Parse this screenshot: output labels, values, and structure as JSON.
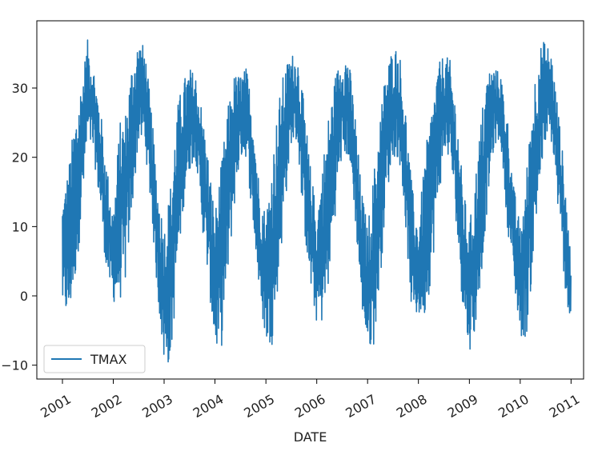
{
  "chart_data": {
    "type": "line",
    "title": "",
    "xlabel": "DATE",
    "ylabel": "",
    "ylim": [
      -12,
      39.7
    ],
    "xlim": [
      "2000-07-01",
      "2011-04-01"
    ],
    "x_ticks": [
      "2001-01-01",
      "2002-01-01",
      "2003-01-01",
      "2004-01-01",
      "2005-01-01",
      "2006-01-01",
      "2007-01-01",
      "2008-01-01",
      "2009-01-01",
      "2010-01-01",
      "2011-01-01"
    ],
    "x_tick_labels": [
      "2001",
      "2002",
      "2003",
      "2004",
      "2005",
      "2006",
      "2007",
      "2008",
      "2009",
      "2010",
      "2011"
    ],
    "y_ticks": [
      -10,
      0,
      10,
      20,
      30
    ],
    "y_tick_labels": [
      "−10",
      "0",
      "10",
      "20",
      "30"
    ],
    "grid": false,
    "legend": {
      "position": "lower-left",
      "entries": [
        "TMAX"
      ]
    },
    "colors": {
      "TMAX": "#1f77b4"
    },
    "series": [
      {
        "name": "TMAX",
        "x": [
          "2001-01-01",
          "2001-02-15",
          "2001-04-01",
          "2001-05-15",
          "2001-07-01",
          "2001-08-15",
          "2001-10-01",
          "2001-11-15",
          "2002-01-01",
          "2002-02-15",
          "2002-04-01",
          "2002-05-15",
          "2002-07-01",
          "2002-08-15",
          "2002-10-01",
          "2002-11-15",
          "2003-01-01",
          "2003-02-15",
          "2003-04-01",
          "2003-05-15",
          "2003-07-01",
          "2003-08-15",
          "2003-10-01",
          "2003-11-15",
          "2004-01-01",
          "2004-02-15",
          "2004-04-01",
          "2004-05-15",
          "2004-07-01",
          "2004-08-15",
          "2004-10-01",
          "2004-11-15",
          "2005-01-01",
          "2005-02-15",
          "2005-04-01",
          "2005-05-15",
          "2005-07-01",
          "2005-08-15",
          "2005-10-01",
          "2005-11-15",
          "2006-01-01",
          "2006-02-15",
          "2006-04-01",
          "2006-05-15",
          "2006-07-01",
          "2006-08-15",
          "2006-10-01",
          "2006-11-15",
          "2007-01-01",
          "2007-02-15",
          "2007-04-01",
          "2007-05-15",
          "2007-07-01",
          "2007-08-15",
          "2007-10-01",
          "2007-11-15",
          "2008-01-01",
          "2008-02-15",
          "2008-04-01",
          "2008-05-15",
          "2008-07-01",
          "2008-08-15",
          "2008-10-01",
          "2008-11-15",
          "2009-01-01",
          "2009-02-15",
          "2009-04-01",
          "2009-05-15",
          "2009-07-01",
          "2009-08-15",
          "2009-10-01",
          "2009-11-15",
          "2010-01-01",
          "2010-02-15",
          "2010-04-01",
          "2010-05-15",
          "2010-07-01",
          "2010-08-15",
          "2010-10-01",
          "2010-11-15",
          "2010-12-31"
        ],
        "min": [
          -2,
          -4,
          2,
          10,
          22,
          20,
          12,
          3,
          -1,
          -1,
          2,
          12,
          22,
          22,
          12,
          0,
          -10,
          -10,
          1,
          12,
          18,
          20,
          10,
          2,
          -8,
          -8,
          2,
          12,
          20,
          20,
          10,
          0,
          -7,
          -7,
          2,
          12,
          22,
          22,
          10,
          1,
          -4,
          -4,
          2,
          12,
          20,
          20,
          12,
          -1,
          -8,
          -7,
          2,
          14,
          20,
          20,
          10,
          -3,
          -3,
          -3,
          2,
          12,
          20,
          20,
          10,
          -2,
          -8,
          -5,
          4,
          14,
          22,
          22,
          10,
          2,
          -6,
          -6,
          4,
          14,
          22,
          22,
          12,
          2,
          -6
        ],
        "max": [
          14,
          19,
          26,
          31,
          37,
          33,
          27,
          19,
          12,
          25,
          27,
          34,
          37,
          36,
          27,
          16,
          10,
          16,
          27,
          31,
          33,
          32,
          27,
          20,
          12,
          19,
          27,
          32,
          32,
          33,
          27,
          16,
          12,
          20,
          28,
          33,
          35,
          35,
          28,
          19,
          12,
          20,
          27,
          32,
          35,
          35,
          27,
          16,
          10,
          18,
          27,
          33,
          36,
          36,
          27,
          16,
          10,
          20,
          27,
          33,
          35,
          34,
          27,
          16,
          10,
          18,
          27,
          33,
          33,
          32,
          26,
          16,
          10,
          18,
          30,
          36,
          37,
          35,
          27,
          18,
          6
        ]
      }
    ]
  }
}
